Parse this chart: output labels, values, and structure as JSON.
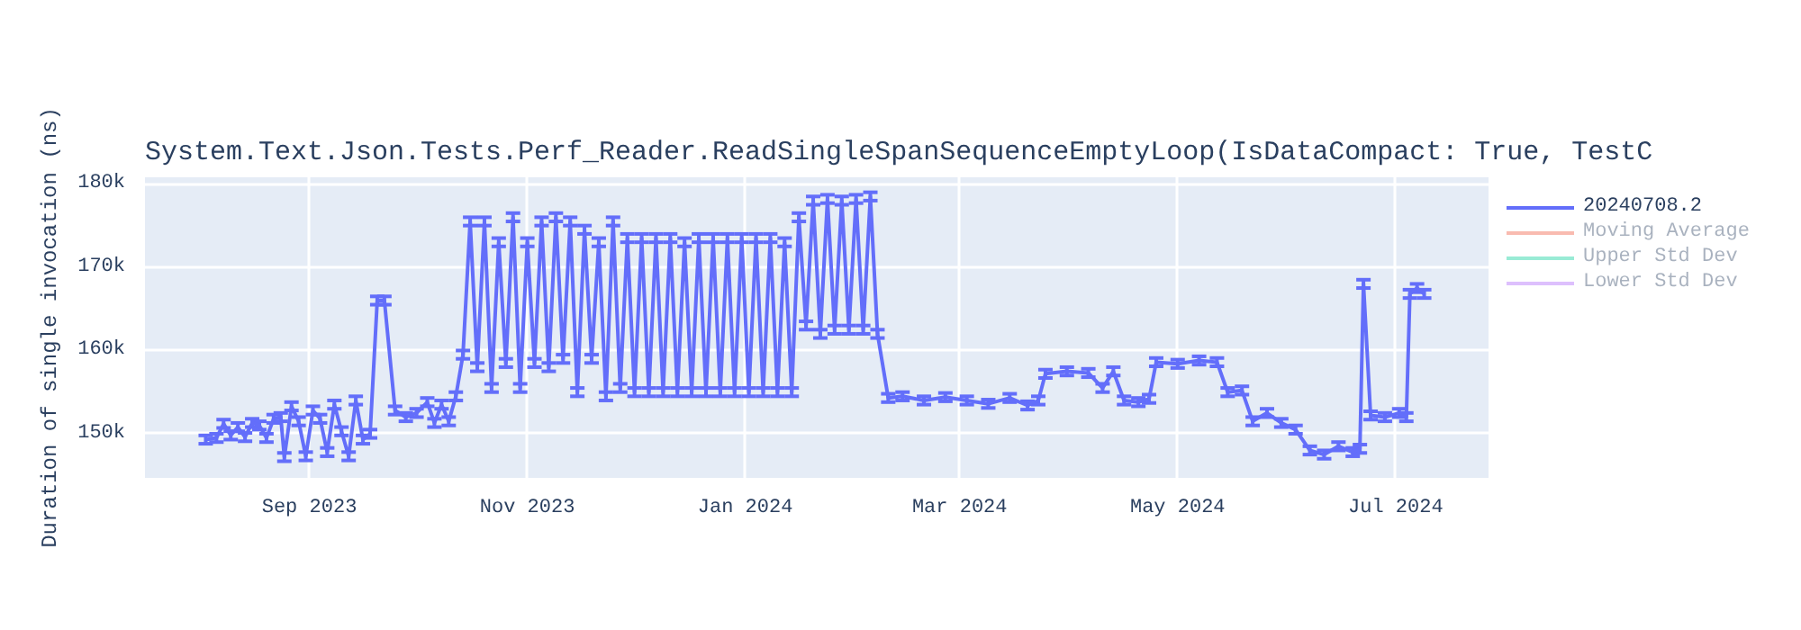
{
  "chart_data": {
    "type": "line",
    "title": "System.Text.Json.Tests.Perf_Reader.ReadSingleSpanSequenceEmptyLoop(IsDataCompact: True, TestC",
    "ylabel": "Duration of single invocation (ns)",
    "x": [
      "2023-08-03",
      "2023-08-06",
      "2023-08-08",
      "2023-08-10",
      "2023-08-12",
      "2023-08-14",
      "2023-08-16",
      "2023-08-18",
      "2023-08-20",
      "2023-08-22",
      "2023-08-24",
      "2023-08-25",
      "2023-08-27",
      "2023-08-29",
      "2023-08-31",
      "2023-09-02",
      "2023-09-04",
      "2023-09-06",
      "2023-09-08",
      "2023-09-10",
      "2023-09-12",
      "2023-09-14",
      "2023-09-16",
      "2023-09-18",
      "2023-09-20",
      "2023-09-22",
      "2023-09-25",
      "2023-09-28",
      "2023-10-01",
      "2023-10-04",
      "2023-10-06",
      "2023-10-08",
      "2023-10-10",
      "2023-10-12",
      "2023-10-14",
      "2023-10-16",
      "2023-10-18",
      "2023-10-20",
      "2023-10-22",
      "2023-10-24",
      "2023-10-26",
      "2023-10-28",
      "2023-10-30",
      "2023-11-01",
      "2023-11-03",
      "2023-11-05",
      "2023-11-07",
      "2023-11-09",
      "2023-11-11",
      "2023-11-13",
      "2023-11-15",
      "2023-11-17",
      "2023-11-19",
      "2023-11-21",
      "2023-11-23",
      "2023-11-25",
      "2023-11-27",
      "2023-11-29",
      "2023-12-01",
      "2023-12-03",
      "2023-12-05",
      "2023-12-07",
      "2023-12-09",
      "2023-12-11",
      "2023-12-13",
      "2023-12-15",
      "2023-12-17",
      "2023-12-19",
      "2023-12-21",
      "2023-12-23",
      "2023-12-25",
      "2023-12-27",
      "2023-12-29",
      "2023-12-31",
      "2024-01-02",
      "2024-01-04",
      "2024-01-06",
      "2024-01-08",
      "2024-01-10",
      "2024-01-12",
      "2024-01-14",
      "2024-01-16",
      "2024-01-18",
      "2024-01-20",
      "2024-01-22",
      "2024-01-24",
      "2024-01-26",
      "2024-01-28",
      "2024-01-30",
      "2024-02-01",
      "2024-02-03",
      "2024-02-05",
      "2024-02-07",
      "2024-02-10",
      "2024-02-14",
      "2024-02-20",
      "2024-02-26",
      "2024-03-03",
      "2024-03-09",
      "2024-03-15",
      "2024-03-20",
      "2024-03-23",
      "2024-03-25",
      "2024-03-31",
      "2024-04-06",
      "2024-04-10",
      "2024-04-13",
      "2024-04-16",
      "2024-04-20",
      "2024-04-23",
      "2024-04-25",
      "2024-05-01",
      "2024-05-07",
      "2024-05-12",
      "2024-05-15",
      "2024-05-19",
      "2024-05-22",
      "2024-05-26",
      "2024-05-30",
      "2024-06-03",
      "2024-06-07",
      "2024-06-11",
      "2024-06-15",
      "2024-06-19",
      "2024-06-21",
      "2024-06-22",
      "2024-06-24",
      "2024-06-28",
      "2024-07-02",
      "2024-07-04",
      "2024-07-05",
      "2024-07-07",
      "2024-07-09"
    ],
    "series": [
      {
        "name": "20240708.2",
        "color": "#636efa",
        "values": [
          149300,
          149500,
          151200,
          149800,
          150800,
          149600,
          151300,
          151000,
          149500,
          151800,
          152000,
          147200,
          153300,
          151500,
          147300,
          152800,
          151800,
          147800,
          153500,
          150300,
          147300,
          154000,
          149300,
          150000,
          166000,
          166000,
          152800,
          152000,
          152500,
          153800,
          151300,
          153500,
          151500,
          154500,
          159500,
          175500,
          158000,
          175500,
          155500,
          173000,
          158500,
          176000,
          155500,
          173000,
          158500,
          175500,
          158000,
          176000,
          159000,
          175500,
          155000,
          174500,
          159000,
          173000,
          154500,
          175500,
          155500,
          173500,
          155000,
          173500,
          155000,
          173500,
          155000,
          173500,
          155000,
          173000,
          155000,
          173500,
          155000,
          173500,
          155000,
          173500,
          155000,
          173500,
          155000,
          173500,
          155000,
          173500,
          155000,
          173000,
          155000,
          176000,
          163000,
          178000,
          162000,
          178200,
          162500,
          178000,
          162500,
          178200,
          162500,
          178500,
          162000,
          154300,
          154500,
          154000,
          154400,
          154000,
          153600,
          154300,
          153400,
          154000,
          157200,
          157500,
          157300,
          155500,
          157500,
          154000,
          153800,
          154200,
          158600,
          158400,
          158800,
          158600,
          155000,
          155200,
          151500,
          152500,
          151300,
          150500,
          148000,
          147500,
          148500,
          147800,
          148200,
          168000,
          152200,
          152000,
          152500,
          152000,
          166800,
          167500,
          166800
        ],
        "errors": [
          500,
          500,
          500,
          500,
          500,
          500,
          500,
          500,
          500,
          500,
          500,
          500,
          500,
          500,
          500,
          500,
          500,
          500,
          500,
          500,
          500,
          500,
          500,
          500,
          500,
          500,
          500,
          500,
          500,
          500,
          500,
          500,
          500,
          500,
          500,
          500,
          500,
          500,
          500,
          500,
          500,
          500,
          500,
          500,
          500,
          500,
          500,
          500,
          500,
          500,
          500,
          500,
          500,
          500,
          500,
          500,
          500,
          500,
          500,
          500,
          500,
          500,
          500,
          500,
          500,
          500,
          500,
          500,
          500,
          500,
          500,
          500,
          500,
          500,
          500,
          500,
          500,
          500,
          500,
          500,
          500,
          500,
          500,
          500,
          500,
          500,
          500,
          500,
          500,
          500,
          500,
          500,
          500,
          500,
          500,
          500,
          500,
          500,
          500,
          500,
          500,
          500,
          500,
          500,
          500,
          500,
          500,
          500,
          500,
          500,
          500,
          500,
          500,
          500,
          500,
          500,
          500,
          500,
          500,
          500,
          500,
          500,
          500,
          500,
          500,
          500,
          500,
          500,
          500,
          500,
          500,
          500,
          500
        ]
      },
      {
        "name": "Moving Average",
        "color": "#ef553b",
        "values": [
          null,
          null,
          null,
          null,
          null,
          null,
          null,
          null,
          null,
          null,
          null,
          null,
          null,
          null,
          null,
          null,
          null,
          null,
          null,
          null,
          null,
          null,
          null,
          null,
          null,
          null,
          null,
          null,
          null,
          null,
          null,
          null,
          null,
          null,
          null,
          null,
          null,
          null,
          null,
          null,
          null,
          null,
          null,
          null,
          null,
          null,
          null,
          null,
          null,
          null,
          null,
          null,
          null,
          null,
          null,
          null,
          null,
          null,
          null,
          null,
          null,
          null,
          null,
          null,
          null,
          null,
          null,
          null,
          null,
          null,
          null,
          null,
          null,
          null,
          null,
          null,
          null,
          null,
          null,
          null,
          null,
          null,
          null,
          null,
          null,
          null,
          null,
          null,
          null,
          null,
          null,
          null,
          null,
          null,
          null,
          null,
          null,
          null,
          null,
          null,
          null,
          null,
          null,
          null,
          null,
          null,
          null,
          null,
          null,
          null,
          null,
          null,
          null,
          null,
          null,
          null,
          null,
          null,
          null,
          null,
          null,
          null,
          null,
          null,
          null,
          null,
          null,
          null,
          null,
          null,
          null,
          null,
          null
        ]
      },
      {
        "name": "Upper Std Dev",
        "color": "#00cc96",
        "values": [
          null,
          null,
          null,
          null,
          null,
          null,
          null,
          null,
          null,
          null,
          null,
          null,
          null,
          null,
          null,
          null,
          null,
          null,
          null,
          null,
          null,
          null,
          null,
          null,
          null,
          null,
          null,
          null,
          null,
          null,
          null,
          null,
          null,
          null,
          null,
          null,
          null,
          null,
          null,
          null,
          null,
          null,
          null,
          null,
          null,
          null,
          null,
          null,
          null,
          null,
          null,
          null,
          null,
          null,
          null,
          null,
          null,
          null,
          null,
          null,
          null,
          null,
          null,
          null,
          null,
          null,
          null,
          null,
          null,
          null,
          null,
          null,
          null,
          null,
          null,
          null,
          null,
          null,
          null,
          null,
          null,
          null,
          null,
          null,
          null,
          null,
          null,
          null,
          null,
          null,
          null,
          null,
          null,
          null,
          null,
          null,
          null,
          null,
          null,
          null,
          null,
          null,
          null,
          null,
          null,
          null,
          null,
          null,
          null,
          null,
          null,
          null,
          null,
          null,
          null,
          null,
          null,
          null,
          null,
          null,
          null,
          null,
          null,
          null,
          null,
          null,
          null,
          null,
          null,
          null,
          null,
          null,
          null
        ]
      },
      {
        "name": "Lower Std Dev",
        "color": "#ab63fa",
        "values": [
          null,
          null,
          null,
          null,
          null,
          null,
          null,
          null,
          null,
          null,
          null,
          null,
          null,
          null,
          null,
          null,
          null,
          null,
          null,
          null,
          null,
          null,
          null,
          null,
          null,
          null,
          null,
          null,
          null,
          null,
          null,
          null,
          null,
          null,
          null,
          null,
          null,
          null,
          null,
          null,
          null,
          null,
          null,
          null,
          null,
          null,
          null,
          null,
          null,
          null,
          null,
          null,
          null,
          null,
          null,
          null,
          null,
          null,
          null,
          null,
          null,
          null,
          null,
          null,
          null,
          null,
          null,
          null,
          null,
          null,
          null,
          null,
          null,
          null,
          null,
          null,
          null,
          null,
          null,
          null,
          null,
          null,
          null,
          null,
          null,
          null,
          null,
          null,
          null,
          null,
          null,
          null,
          null,
          null,
          null,
          null,
          null,
          null,
          null,
          null,
          null,
          null,
          null,
          null,
          null,
          null,
          null,
          null,
          null,
          null,
          null,
          null,
          null,
          null,
          null,
          null,
          null,
          null,
          null,
          null,
          null,
          null,
          null,
          null,
          null,
          null,
          null,
          null,
          null,
          null,
          null,
          null,
          null
        ]
      }
    ],
    "xlim": [
      "2023-07-17",
      "2024-07-27"
    ],
    "xticks": [
      {
        "value": "2023-09-01",
        "label": "Sep 2023"
      },
      {
        "value": "2023-11-01",
        "label": "Nov 2023"
      },
      {
        "value": "2024-01-01",
        "label": "Jan 2024"
      },
      {
        "value": "2024-03-01",
        "label": "Mar 2024"
      },
      {
        "value": "2024-05-01",
        "label": "May 2024"
      },
      {
        "value": "2024-07-01",
        "label": "Jul 2024"
      }
    ],
    "ylim": [
      144700,
      180800
    ],
    "yticks": [
      {
        "value": 150000,
        "label": "150k"
      },
      {
        "value": 160000,
        "label": "160k"
      },
      {
        "value": 170000,
        "label": "170k"
      },
      {
        "value": 180000,
        "label": "180k"
      }
    ],
    "grid": true,
    "legend": "right",
    "line_style": "solid",
    "marker": "none"
  }
}
